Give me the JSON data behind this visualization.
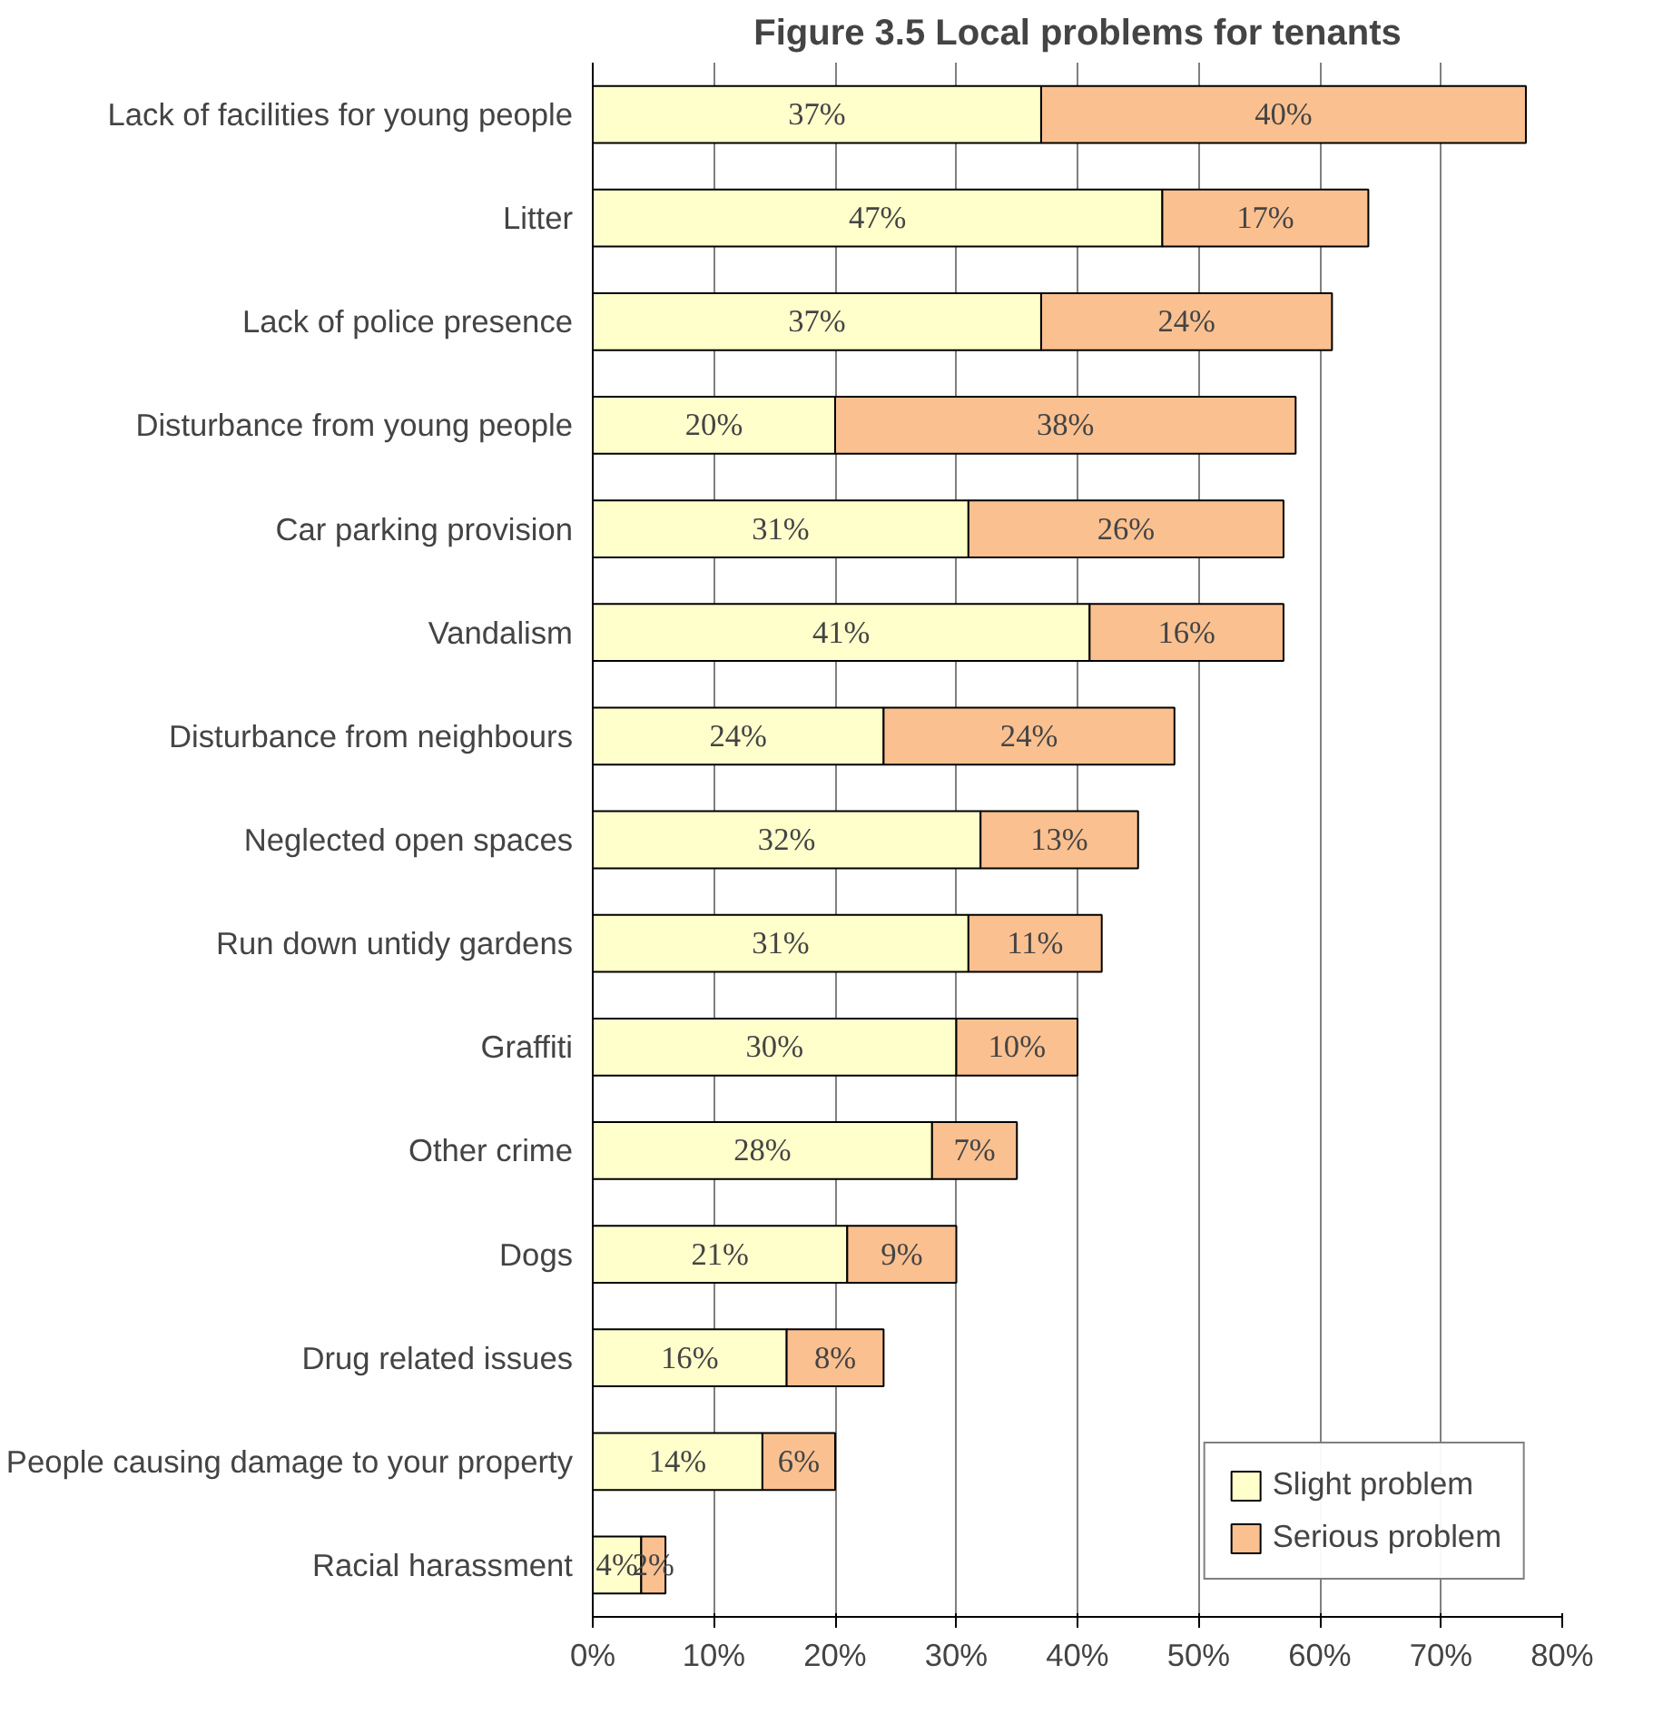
{
  "chart_data": {
    "type": "bar",
    "orientation": "horizontal",
    "stacked": true,
    "title": "Figure 3.5 Local problems for tenants",
    "categories": [
      "Lack of facilities for young people",
      "Litter",
      "Lack of police presence",
      "Disturbance from young people",
      "Car parking provision",
      "Vandalism",
      "Disturbance from neighbours",
      "Neglected open spaces",
      "Run down untidy gardens",
      "Graffiti",
      "Other crime",
      "Dogs",
      "Drug related issues",
      "People causing damage to your property",
      "Racial harassment"
    ],
    "series": [
      {
        "name": "Slight problem",
        "color": "#ffffcc",
        "values": [
          37,
          47,
          37,
          20,
          31,
          41,
          24,
          32,
          31,
          30,
          28,
          21,
          16,
          14,
          4
        ],
        "value_labels": [
          "37%",
          "47%",
          "37%",
          "20%",
          "31%",
          "41%",
          "24%",
          "32%",
          "31%",
          "30%",
          "28%",
          "21%",
          "16%",
          "14%",
          "4%"
        ]
      },
      {
        "name": "Serious problem",
        "color": "#fac090",
        "values": [
          40,
          17,
          24,
          38,
          26,
          16,
          24,
          13,
          11,
          10,
          7,
          9,
          8,
          6,
          2
        ],
        "value_labels": [
          "40%",
          "17%",
          "24%",
          "38%",
          "26%",
          "16%",
          "24%",
          "13%",
          "11%",
          "10%",
          "7%",
          "9%",
          "8%",
          "6%",
          "2%"
        ]
      }
    ],
    "xlim": [
      0,
      80
    ],
    "xticks": [
      {
        "value": 0,
        "label": "0%"
      },
      {
        "value": 10,
        "label": "10%"
      },
      {
        "value": 20,
        "label": "20%"
      },
      {
        "value": 30,
        "label": "30%"
      },
      {
        "value": 40,
        "label": "40%"
      },
      {
        "value": 50,
        "label": "50%"
      },
      {
        "value": 60,
        "label": "60%"
      },
      {
        "value": 70,
        "label": "70%"
      },
      {
        "value": 80,
        "label": "80%"
      }
    ],
    "grid": "x",
    "legend": "bottom right"
  }
}
